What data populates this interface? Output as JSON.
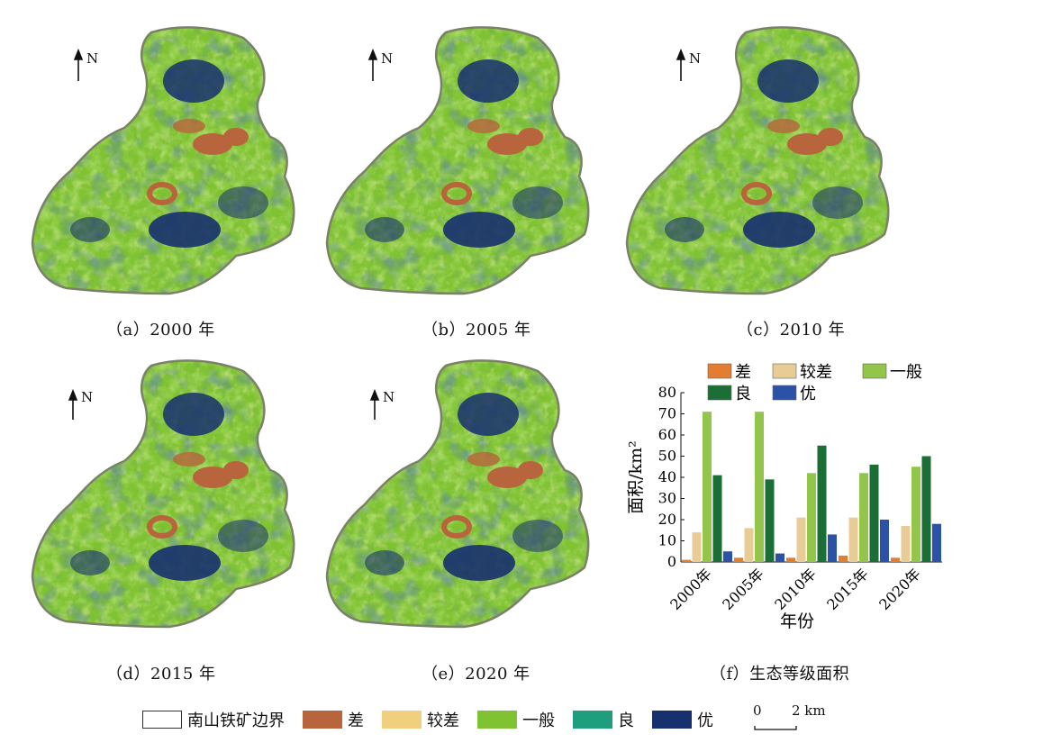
{
  "north_label": "N",
  "maps": [
    {
      "caption": "（a）2000 年"
    },
    {
      "caption": "（b）2005 年"
    },
    {
      "caption": "（c）2010 年"
    },
    {
      "caption": "（d）2015 年"
    },
    {
      "caption": "（e）2020 年"
    }
  ],
  "chart_caption": "（f）生态等级面积",
  "legend": {
    "boundary": "南山铁矿边界",
    "grades": [
      {
        "label": "差",
        "color": "#b8643c"
      },
      {
        "label": "较差",
        "color": "#f0cf7e"
      },
      {
        "label": "一般",
        "color": "#7fc232"
      },
      {
        "label": "良",
        "color": "#1f9e7e"
      },
      {
        "label": "优",
        "color": "#17306e"
      }
    ]
  },
  "scalebar": {
    "start": "0",
    "end": "2 km"
  },
  "chart_data": {
    "type": "bar",
    "categories": [
      "2000年",
      "2005年",
      "2010年",
      "2015年",
      "2020年"
    ],
    "xlabel": "年份",
    "ylabel": "面积/km²",
    "ylim": [
      0,
      80
    ],
    "yticks": [
      "0",
      "10",
      "20",
      "30",
      "40",
      "50",
      "60",
      "70",
      "80"
    ],
    "legend_position": "top",
    "series": [
      {
        "name": "差",
        "color": "#e27d32",
        "values": [
          1,
          2,
          2,
          3,
          2
        ]
      },
      {
        "name": "较差",
        "color": "#e8cc96",
        "values": [
          14,
          16,
          21,
          21,
          17
        ]
      },
      {
        "name": "一般",
        "color": "#92c54a",
        "values": [
          71,
          71,
          42,
          42,
          45
        ]
      },
      {
        "name": "良",
        "color": "#1a6e36",
        "values": [
          41,
          39,
          55,
          46,
          50
        ]
      },
      {
        "name": "优",
        "color": "#2b52a6",
        "values": [
          5,
          4,
          13,
          20,
          18
        ]
      }
    ]
  }
}
